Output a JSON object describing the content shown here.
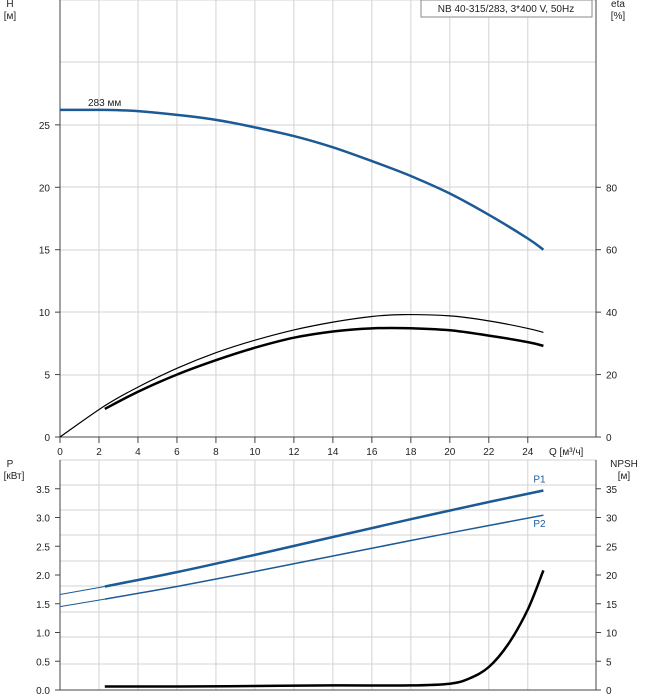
{
  "colors": {
    "blue": "#1c5a96",
    "black": "#000000",
    "grid": "#d3d3d3",
    "axis": "#444444"
  },
  "title": "NB 40-315/283, 3*400 V, 50Hz",
  "chart_data": [
    {
      "type": "line",
      "title": "NB 40-315/283, 3*400 V, 50Hz",
      "xlabel": "Q [м³/ч]",
      "ylabel": "H",
      "ylabel_unit": "[м]",
      "y2label": "eta",
      "y2label_unit": "[%]",
      "xlim": [
        0,
        27.5
      ],
      "ylim": [
        0,
        35
      ],
      "y2lim": [
        0,
        140
      ],
      "x_ticks": [
        0,
        2,
        4,
        6,
        8,
        10,
        12,
        14,
        16,
        18,
        20,
        22,
        24
      ],
      "x_tick_labels": [
        "0",
        "2",
        "4",
        "6",
        "8",
        "10",
        "12",
        "14",
        "16",
        "18",
        "20",
        "22",
        "24"
      ],
      "y_ticks": [
        0,
        5,
        10,
        15,
        20,
        25
      ],
      "y_tick_labels": [
        "0",
        "5",
        "10",
        "15",
        "20",
        "25"
      ],
      "y2_ticks": [
        0,
        20,
        40,
        60,
        80
      ],
      "y2_tick_labels": [
        "0",
        "20",
        "40",
        "60",
        "80"
      ],
      "grid": true,
      "series": [
        {
          "name": "283 мм",
          "axis": "left",
          "color": "#1c5a96",
          "width": 2.5,
          "x": [
            0,
            2.3,
            4,
            6,
            8,
            10,
            12,
            14,
            16,
            18,
            20,
            22,
            24,
            24.8
          ],
          "y": [
            26.2,
            26.2,
            26.1,
            25.8,
            25.4,
            24.8,
            24.1,
            23.2,
            22.1,
            20.9,
            19.5,
            17.8,
            15.9,
            15.0
          ]
        },
        {
          "axis": "right",
          "color": "#000000",
          "width": 1.2,
          "x": [
            0,
            2.3,
            4,
            6,
            8,
            10,
            12,
            14,
            16,
            17.6,
            20,
            22,
            24,
            24.8
          ],
          "y": [
            0,
            10.0,
            16.0,
            22.0,
            27.0,
            31.0,
            34.3,
            36.8,
            38.6,
            39.2,
            38.8,
            37.2,
            34.8,
            33.5
          ]
        },
        {
          "axis": "right",
          "color": "#000000",
          "width": 2.5,
          "x": [
            2.3,
            4,
            6,
            8,
            10,
            12,
            14,
            16,
            17.6,
            20,
            22,
            24,
            24.8
          ],
          "y": [
            9.0,
            14.5,
            20.0,
            24.6,
            28.6,
            31.8,
            33.8,
            34.8,
            34.9,
            34.2,
            32.5,
            30.4,
            29.2
          ]
        }
      ]
    },
    {
      "type": "line",
      "xlabel": "",
      "ylabel": "P",
      "ylabel_unit": "[кВт]",
      "y2label": "NPSH",
      "y2label_unit": "[м]",
      "xlim": [
        0,
        27.5
      ],
      "ylim": [
        0,
        4.0
      ],
      "y2lim": [
        0,
        40
      ],
      "x_ticks": [
        0,
        2,
        4,
        6,
        8,
        10,
        12,
        14,
        16,
        18,
        20,
        22,
        24
      ],
      "y_ticks": [
        0,
        0.5,
        1.0,
        1.5,
        2.0,
        2.5,
        3.0,
        3.5
      ],
      "y_tick_labels": [
        "0.0",
        "0.5",
        "1.0",
        "1.5",
        "2.0",
        "2.5",
        "3.0",
        "3.5"
      ],
      "y2_ticks": [
        0,
        5,
        10,
        15,
        20,
        25,
        30,
        35
      ],
      "y2_tick_labels": [
        "0",
        "5",
        "10",
        "15",
        "20",
        "25",
        "30",
        "35"
      ],
      "grid": true,
      "series": [
        {
          "name": "P1",
          "axis": "left",
          "color": "#1c5a96",
          "width": 2.5,
          "x": [
            2.3,
            6,
            10,
            14,
            18,
            22,
            24.8
          ],
          "y": [
            1.8,
            2.05,
            2.35,
            2.66,
            2.97,
            3.27,
            3.47
          ]
        },
        {
          "axis": "left",
          "color": "#1c5a96",
          "width": 1,
          "x": [
            0,
            2.3
          ],
          "y": [
            1.66,
            1.8
          ]
        },
        {
          "name": "P2",
          "axis": "left",
          "color": "#1c5a96",
          "width": 1.5,
          "x": [
            2.3,
            6,
            10,
            14,
            18,
            22,
            24.8
          ],
          "y": [
            1.58,
            1.8,
            2.06,
            2.33,
            2.6,
            2.86,
            3.04
          ]
        },
        {
          "axis": "left",
          "color": "#1c5a96",
          "width": 1,
          "x": [
            0,
            2.3
          ],
          "y": [
            1.45,
            1.58
          ]
        },
        {
          "axis": "right",
          "color": "#000000",
          "width": 2.5,
          "x": [
            2.3,
            6,
            10,
            14,
            18,
            20,
            21,
            22,
            23,
            24,
            24.8
          ],
          "y": [
            0.6,
            0.6,
            0.7,
            0.8,
            0.8,
            1.1,
            2.0,
            4.0,
            8.0,
            14.0,
            20.8
          ]
        }
      ]
    }
  ]
}
